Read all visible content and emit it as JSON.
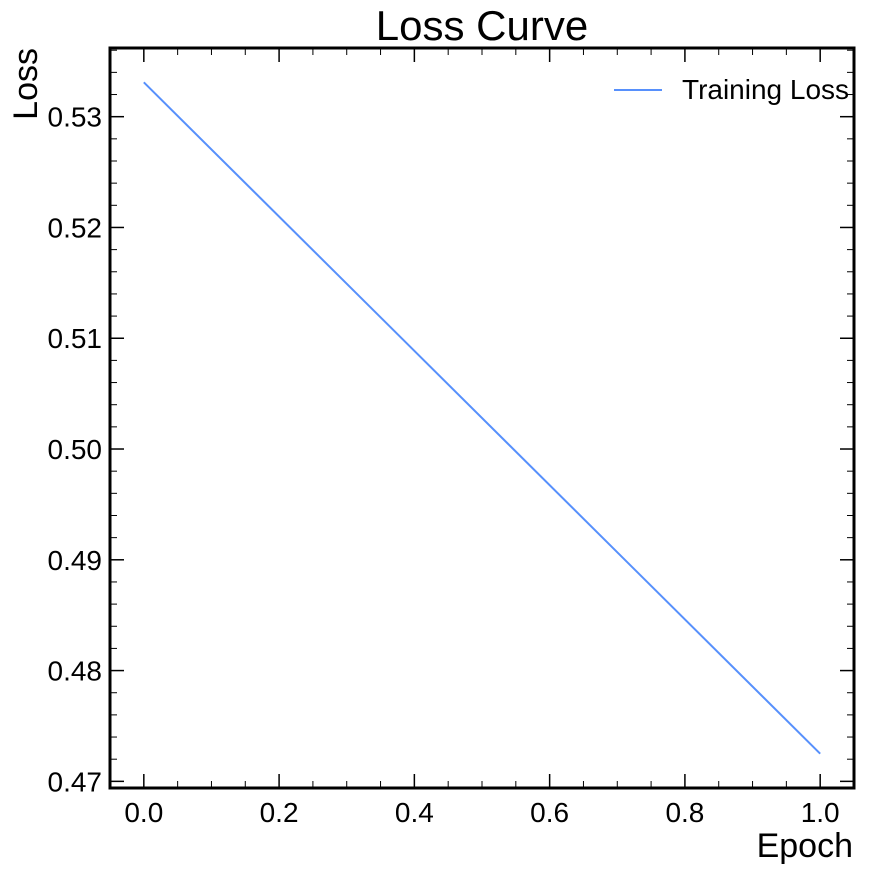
{
  "chart_data": {
    "type": "line",
    "title": "Loss Curve",
    "xlabel": "Epoch",
    "ylabel": "Loss",
    "xlim": [
      -0.05,
      1.05
    ],
    "ylim": [
      0.4694,
      0.5362
    ],
    "x_ticks": [
      0.0,
      0.2,
      0.4,
      0.6,
      0.8,
      1.0
    ],
    "x_tick_labels": [
      "0.0",
      "0.2",
      "0.4",
      "0.6",
      "0.8",
      "1.0"
    ],
    "y_ticks": [
      0.47,
      0.48,
      0.49,
      0.5,
      0.51,
      0.52,
      0.53
    ],
    "y_tick_labels": [
      "0.47",
      "0.48",
      "0.49",
      "0.50",
      "0.51",
      "0.52",
      "0.53"
    ],
    "grid": false,
    "legend_position": "top-right",
    "series": [
      {
        "name": "Training Loss",
        "color": "#5790fc",
        "x": [
          0.0,
          1.0
        ],
        "y": [
          0.5331,
          0.4725
        ]
      }
    ]
  }
}
